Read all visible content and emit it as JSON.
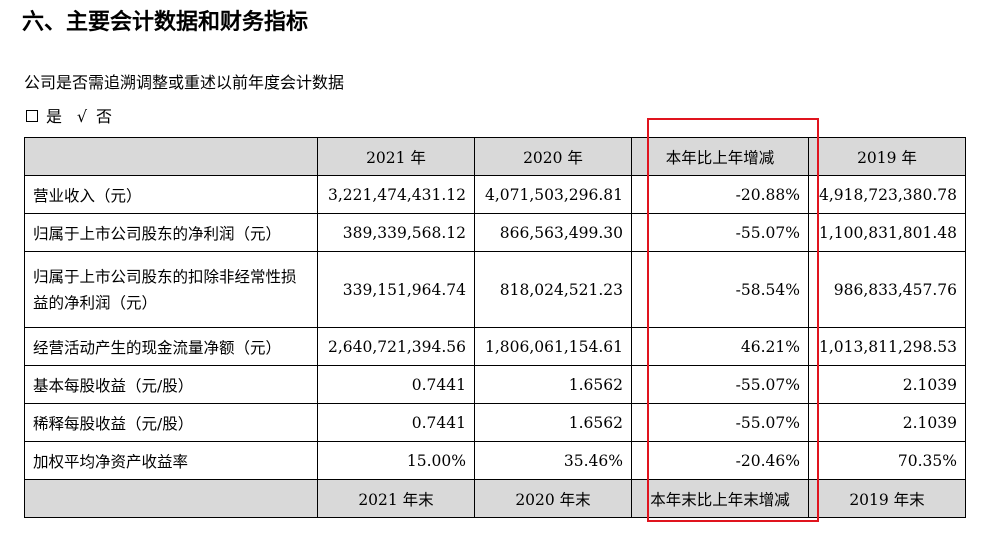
{
  "heading": "六、主要会计数据和财务指标",
  "question": "公司是否需追溯调整或重述以前年度会计数据",
  "options": [
    {
      "mark": "box",
      "label": "是"
    },
    {
      "mark": "√",
      "label": "否"
    }
  ],
  "table": {
    "headers": [
      "",
      "2021 年",
      "2020 年",
      "本年比上年增减",
      "2019 年"
    ],
    "rows": [
      {
        "label": "营业收入（元）",
        "y2021": "3,221,474,431.12",
        "y2020": "4,071,503,296.81",
        "change": "-20.88%",
        "y2019": "4,918,723,380.78"
      },
      {
        "label": "归属于上市公司股东的净利润（元）",
        "y2021": "389,339,568.12",
        "y2020": "866,563,499.30",
        "change": "-55.07%",
        "y2019": "1,100,831,801.48"
      },
      {
        "label": "归属于上市公司股东的扣除非经常性损益的净利润（元）",
        "y2021": "339,151,964.74",
        "y2020": "818,024,521.23",
        "change": "-58.54%",
        "y2019": "986,833,457.76"
      },
      {
        "label": "经营活动产生的现金流量净额（元）",
        "y2021": "2,640,721,394.56",
        "y2020": "1,806,061,154.61",
        "change": "46.21%",
        "y2019": "1,013,811,298.53"
      },
      {
        "label": "基本每股收益（元/股）",
        "y2021": "0.7441",
        "y2020": "1.6562",
        "change": "-55.07%",
        "y2019": "2.1039"
      },
      {
        "label": "稀释每股收益（元/股）",
        "y2021": "0.7441",
        "y2020": "1.6562",
        "change": "-55.07%",
        "y2019": "2.1039"
      },
      {
        "label": "加权平均净资产收益率",
        "y2021": "15.00%",
        "y2020": "35.46%",
        "change": "-20.46%",
        "y2019": "70.35%"
      }
    ],
    "footer": [
      "",
      "2021 年末",
      "2020 年末",
      "本年末比上年末增减",
      "2019 年末"
    ]
  },
  "colors": {
    "header_bg": "#d9d9d9",
    "highlight_border": "#e0141e"
  }
}
